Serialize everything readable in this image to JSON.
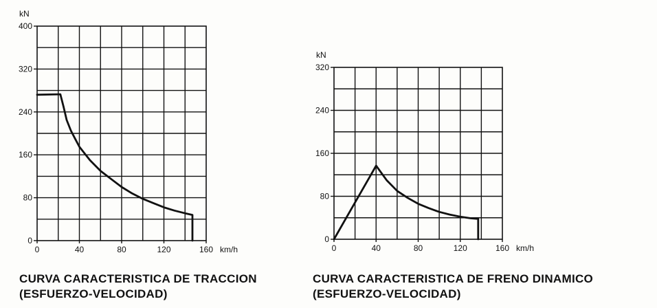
{
  "chart_data": [
    {
      "type": "line",
      "ylabel": "kN",
      "xlabel": "km/h",
      "xlim": [
        0,
        160
      ],
      "ylim": [
        0,
        400
      ],
      "x_ticks": [
        0,
        40,
        80,
        120,
        160
      ],
      "y_ticks": [
        0,
        80,
        160,
        240,
        320,
        400
      ],
      "grid": true,
      "series": [
        {
          "points": [
            [
              0,
              272
            ],
            [
              22,
              273
            ],
            [
              25,
              250
            ],
            [
              28,
              225
            ],
            [
              32,
              205
            ],
            [
              36,
              190
            ],
            [
              40,
              175
            ],
            [
              50,
              150
            ],
            [
              60,
              130
            ],
            [
              70,
              115
            ],
            [
              80,
              100
            ],
            [
              90,
              88
            ],
            [
              100,
              78
            ],
            [
              110,
              70
            ],
            [
              120,
              62
            ],
            [
              130,
              56
            ],
            [
              140,
              51
            ],
            [
              147,
              48
            ],
            [
              147,
              0
            ]
          ]
        }
      ],
      "caption_line1": "CURVA CARACTERISTICA DE TRACCION",
      "caption_line2": "(ESFUERZO-VELOCIDAD)"
    },
    {
      "type": "line",
      "ylabel": "kN",
      "xlabel": "km/h",
      "xlim": [
        0,
        160
      ],
      "ylim": [
        0,
        320
      ],
      "x_ticks": [
        0,
        40,
        80,
        120,
        160
      ],
      "y_ticks": [
        0,
        80,
        160,
        240,
        320
      ],
      "grid": true,
      "series": [
        {
          "points": [
            [
              0,
              0
            ],
            [
              40,
              137
            ],
            [
              50,
              110
            ],
            [
              60,
              90
            ],
            [
              70,
              77
            ],
            [
              80,
              66
            ],
            [
              90,
              58
            ],
            [
              100,
              51
            ],
            [
              110,
              46
            ],
            [
              120,
              42
            ],
            [
              130,
              39
            ],
            [
              137,
              38
            ],
            [
              137,
              0
            ]
          ]
        }
      ],
      "caption_line1": "CURVA CARACTERISTICA DE FRENO DINAMICO",
      "caption_line2": "(ESFUERZO-VELOCIDAD)"
    }
  ]
}
